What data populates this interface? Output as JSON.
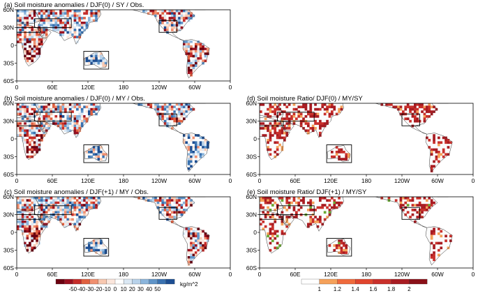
{
  "panels": [
    {
      "id": "a",
      "title": "(a) Soil moisture anomalies / DJF(0) / SY / Obs.",
      "kind": "anomaly",
      "seed": 3
    },
    {
      "id": "b",
      "title": "(b) Soil moisture anomalies / DJF(0) / MY / Obs.",
      "kind": "anomaly",
      "seed": 7
    },
    {
      "id": "c",
      "title": "(c) Soil moisture anomalies / DJF(+1) / MY / Obs.",
      "kind": "anomaly",
      "seed": 11
    },
    {
      "id": "d",
      "title": "(d) Soil moisture Ratio/ DJF(0) / MY/SY",
      "kind": "ratio",
      "seed": 13
    },
    {
      "id": "e",
      "title": "(e) Soil moisture Ratio/ DJF(+1) / MY/SY",
      "kind": "ratio",
      "seed": 17
    }
  ],
  "axes": {
    "lon_labels": [
      "0",
      "60E",
      "120E",
      "180",
      "120W",
      "60W",
      "0"
    ],
    "lat_labels": [
      "60N",
      "30N",
      "0",
      "30S",
      "60S"
    ]
  },
  "colorbar_anomaly": {
    "labels": [
      "-50",
      "-40",
      "-30",
      "-20",
      "-10",
      "0",
      "10",
      "20",
      "30",
      "40",
      "50"
    ],
    "unit": "kg/m^2",
    "colors": [
      "#6b0010",
      "#9a1020",
      "#c62d2a",
      "#e06040",
      "#f09070",
      "#f8c8b0",
      "#fbe6dc",
      "#ffffff",
      "#dbe8f4",
      "#b8d2ea",
      "#8bb5dc",
      "#5f94c8",
      "#3a72b0",
      "#1d4e92"
    ]
  },
  "colorbar_ratio": {
    "labels": [
      "1",
      "1.2",
      "1.4",
      "1.6",
      "1.8",
      "2"
    ],
    "colors": [
      "#ffffff",
      "#f5a15a",
      "#ef6a3c",
      "#e0452d",
      "#c9302b",
      "#a81c22",
      "#8a1018"
    ]
  }
}
